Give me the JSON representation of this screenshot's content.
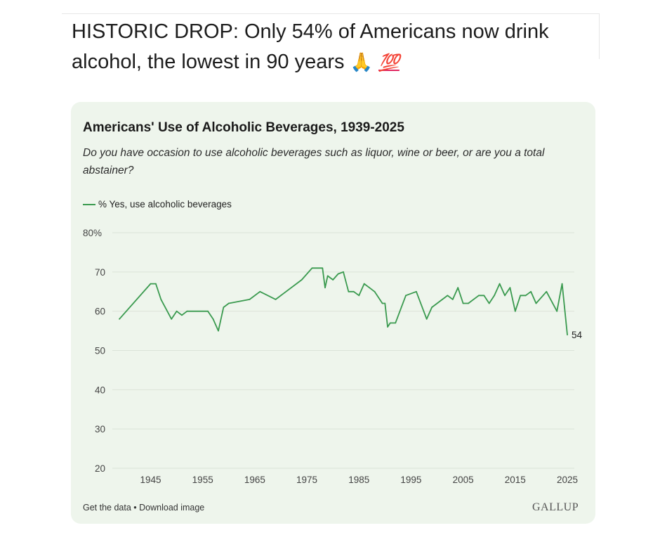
{
  "post": {
    "text": "HISTORIC DROP: Only 54% of Americans now drink alcohol, the lowest in 90 years",
    "emoji_pray": "🙏",
    "emoji_hundred": "💯"
  },
  "colors": {
    "line": "#3a9a4f",
    "grid": "#dbe4d8",
    "card_background": "#eef5ec"
  },
  "footer": {
    "get_data": "Get the data",
    "separator": " • ",
    "download": "Download image",
    "brand": "GALLUP"
  },
  "chart_data": {
    "type": "line",
    "title": "Americans' Use of Alcoholic Beverages, 1939-2025",
    "subtitle": "Do you have occasion to use alcoholic beverages such as liquor, wine or beer, or are you a total abstainer?",
    "ylabel": "",
    "xlabel": "",
    "ylim": [
      20,
      80
    ],
    "xlim": [
      1939,
      2025
    ],
    "yticks": [
      20,
      30,
      40,
      50,
      60,
      70,
      80
    ],
    "ytick_labels": [
      "20",
      "30",
      "40",
      "50",
      "60",
      "70",
      "80%"
    ],
    "xticks": [
      1945,
      1955,
      1965,
      1975,
      1985,
      1995,
      2005,
      2015,
      2025
    ],
    "xtick_labels": [
      "1945",
      "1955",
      "1965",
      "1975",
      "1985",
      "1995",
      "2005",
      "2015",
      "2025"
    ],
    "grid": true,
    "legend_position": "top-left",
    "end_label": "54",
    "series": [
      {
        "name": "% Yes, use alcoholic beverages",
        "points": [
          [
            1939,
            58
          ],
          [
            1945,
            67
          ],
          [
            1946,
            67
          ],
          [
            1947,
            63
          ],
          [
            1949,
            58
          ],
          [
            1950,
            60
          ],
          [
            1951,
            59
          ],
          [
            1952,
            60
          ],
          [
            1956,
            60
          ],
          [
            1957,
            58
          ],
          [
            1958,
            55
          ],
          [
            1959,
            61
          ],
          [
            1960,
            62
          ],
          [
            1964,
            63
          ],
          [
            1966,
            65
          ],
          [
            1969,
            63
          ],
          [
            1970,
            64
          ],
          [
            1974,
            68
          ],
          [
            1976,
            71
          ],
          [
            1978,
            71
          ],
          [
            1978.5,
            66
          ],
          [
            1979,
            69
          ],
          [
            1980,
            68
          ],
          [
            1981,
            69.5
          ],
          [
            1982,
            70
          ],
          [
            1983,
            65
          ],
          [
            1984,
            65
          ],
          [
            1985,
            64
          ],
          [
            1986,
            67
          ],
          [
            1987,
            66
          ],
          [
            1988,
            65
          ],
          [
            1989,
            63
          ],
          [
            1989.5,
            62
          ],
          [
            1990,
            62
          ],
          [
            1990.5,
            56
          ],
          [
            1991,
            57
          ],
          [
            1992,
            57
          ],
          [
            1994,
            64
          ],
          [
            1996,
            65
          ],
          [
            1998,
            58
          ],
          [
            1999,
            61
          ],
          [
            2001,
            63
          ],
          [
            2002,
            64
          ],
          [
            2003,
            63
          ],
          [
            2004,
            66
          ],
          [
            2005,
            62
          ],
          [
            2006,
            62
          ],
          [
            2008,
            64
          ],
          [
            2009,
            64
          ],
          [
            2010,
            62
          ],
          [
            2011,
            64
          ],
          [
            2012,
            67
          ],
          [
            2013,
            64
          ],
          [
            2014,
            66
          ],
          [
            2015,
            60
          ],
          [
            2016,
            64
          ],
          [
            2017,
            64
          ],
          [
            2018,
            65
          ],
          [
            2019,
            62
          ],
          [
            2021,
            65
          ],
          [
            2023,
            60
          ],
          [
            2024,
            67
          ],
          [
            2025,
            54
          ]
        ]
      }
    ]
  }
}
